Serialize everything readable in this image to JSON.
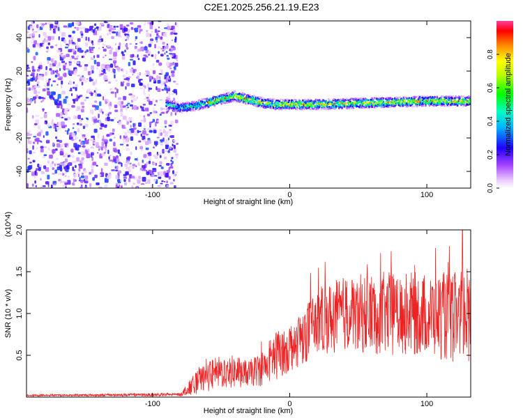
{
  "title": "C2E1.2025.256.21.19.E23",
  "chart_data": [
    {
      "type": "heatmap",
      "title": "C2E1.2025.256.21.19.E23",
      "xlabel": "Height of straight line (km)",
      "ylabel": "Frequency (Hz)",
      "xlim": [
        -192,
        132
      ],
      "ylim": [
        -50,
        50
      ],
      "xticks": [
        "-100",
        "0",
        "100"
      ],
      "yticks": [
        "-40",
        "-20",
        "0",
        "20",
        "40"
      ],
      "noise_region": {
        "x_range": [
          -192,
          -82
        ],
        "frequency_range": [
          -50,
          50
        ]
      },
      "signal_ridge": {
        "x": [
          -90,
          -80,
          -70,
          -60,
          -50,
          -40,
          -30,
          -20,
          -10,
          0,
          20,
          40,
          60,
          80,
          100,
          120,
          132
        ],
        "frequency_hz": [
          0,
          -2,
          -1,
          1,
          3,
          5,
          3,
          1,
          0,
          0,
          0,
          0.5,
          1,
          1.5,
          2,
          2,
          2
        ]
      },
      "colorbar": {
        "label": "Normalized spectral amplitude",
        "range": [
          0,
          1
        ],
        "ticks": [
          "0.0",
          "0.2",
          "0.4",
          "0.6",
          "0.8"
        ],
        "colormap": [
          "#ffffff",
          "#ff00ff",
          "#8000ff",
          "#0000ff",
          "#00ffff",
          "#00ff00",
          "#ffff00",
          "#ff8000",
          "#ff0000"
        ]
      }
    },
    {
      "type": "line",
      "xlabel": "Height of straight line (km)",
      "ylabel": "SNR (10 * v/v)",
      "y_multiplier": "(x10^4)",
      "xlim": [
        -192,
        132
      ],
      "ylim": [
        0,
        2.0
      ],
      "xticks": [
        "-100",
        "0",
        "100"
      ],
      "yticks": [
        "0.5",
        "1.0",
        "1.5",
        "2.0"
      ],
      "color": "#ee2222",
      "envelope": {
        "x": [
          -192,
          -80,
          -70,
          -60,
          -50,
          -40,
          -30,
          -20,
          -10,
          0,
          10,
          20,
          40,
          60,
          80,
          100,
          120,
          132
        ],
        "mean": [
          0.02,
          0.03,
          0.15,
          0.25,
          0.3,
          0.3,
          0.28,
          0.35,
          0.5,
          0.6,
          0.75,
          0.9,
          1.0,
          1.0,
          1.0,
          1.0,
          0.95,
          1.0
        ],
        "spread": [
          0.01,
          0.02,
          0.12,
          0.18,
          0.2,
          0.2,
          0.15,
          0.22,
          0.3,
          0.3,
          0.35,
          0.4,
          0.45,
          0.5,
          0.5,
          0.5,
          0.55,
          0.6
        ]
      },
      "peak": {
        "x": 126,
        "y": 2.02
      }
    }
  ],
  "colors": {
    "line": "#ee2222",
    "axis": "#000000"
  }
}
